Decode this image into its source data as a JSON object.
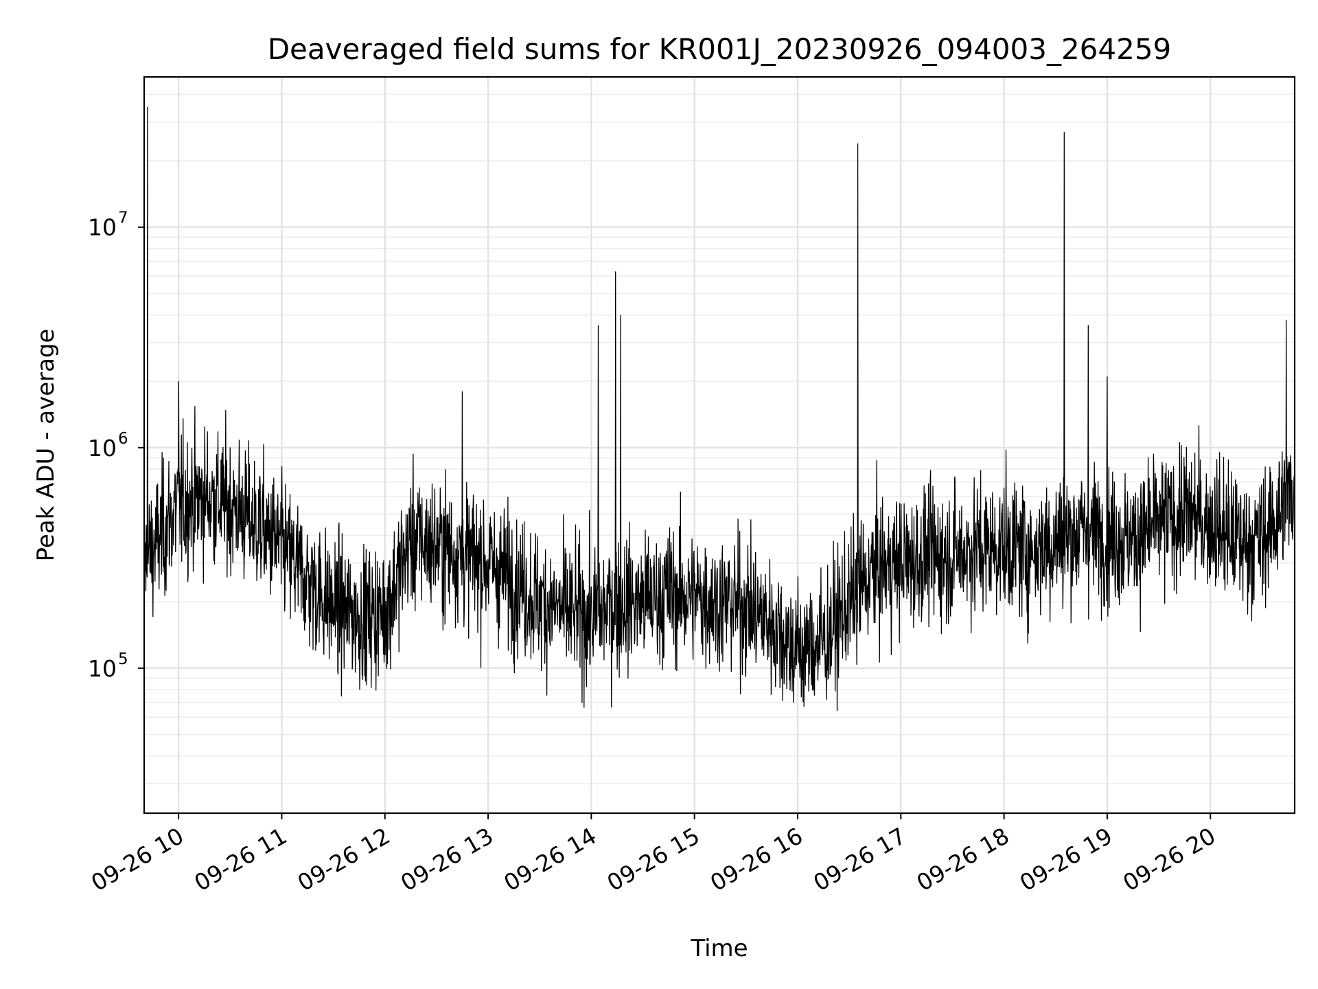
{
  "chart_data": {
    "type": "line",
    "title": "Deaveraged field sums for KR001J_20230926_094003_264259",
    "xlabel": "Time",
    "ylabel": "Peak ADU - average",
    "yscale": "log",
    "xlim": [
      "2023-09-26 09:40",
      "2023-09-26 20:49"
    ],
    "ylim": [
      22000,
      48000000
    ],
    "grid": true,
    "line_color": "#000000",
    "x_ticks": [
      {
        "value": "2023-09-26 10:00",
        "label": "09-26 10"
      },
      {
        "value": "2023-09-26 11:00",
        "label": "09-26 11"
      },
      {
        "value": "2023-09-26 12:00",
        "label": "09-26 12"
      },
      {
        "value": "2023-09-26 13:00",
        "label": "09-26 13"
      },
      {
        "value": "2023-09-26 14:00",
        "label": "09-26 14"
      },
      {
        "value": "2023-09-26 15:00",
        "label": "09-26 15"
      },
      {
        "value": "2023-09-26 16:00",
        "label": "09-26 16"
      },
      {
        "value": "2023-09-26 17:00",
        "label": "09-26 17"
      },
      {
        "value": "2023-09-26 18:00",
        "label": "09-26 18"
      },
      {
        "value": "2023-09-26 19:00",
        "label": "09-26 19"
      },
      {
        "value": "2023-09-26 20:00",
        "label": "09-26 20"
      }
    ],
    "y_ticks": [
      {
        "value": 100000,
        "base": "10",
        "exp": "5"
      },
      {
        "value": 1000000,
        "base": "10",
        "exp": "6"
      },
      {
        "value": 10000000,
        "base": "10",
        "exp": "7"
      }
    ],
    "baseline": {
      "x": [
        "2023-09-26 09:40",
        "2023-09-26 09:50",
        "2023-09-26 10:00",
        "2023-09-26 10:15",
        "2023-09-26 10:30",
        "2023-09-26 10:45",
        "2023-09-26 11:00",
        "2023-09-26 11:15",
        "2023-09-26 11:30",
        "2023-09-26 11:45",
        "2023-09-26 12:00",
        "2023-09-26 12:15",
        "2023-09-26 12:30",
        "2023-09-26 12:45",
        "2023-09-26 13:00",
        "2023-09-26 13:15",
        "2023-09-26 13:30",
        "2023-09-26 13:45",
        "2023-09-26 14:00",
        "2023-09-26 14:15",
        "2023-09-26 14:30",
        "2023-09-26 14:45",
        "2023-09-26 15:00",
        "2023-09-26 15:15",
        "2023-09-26 15:30",
        "2023-09-26 15:45",
        "2023-09-26 16:00",
        "2023-09-26 16:15",
        "2023-09-26 16:30",
        "2023-09-26 16:45",
        "2023-09-26 17:00",
        "2023-09-26 17:15",
        "2023-09-26 17:30",
        "2023-09-26 17:45",
        "2023-09-26 18:00",
        "2023-09-26 18:15",
        "2023-09-26 18:30",
        "2023-09-26 18:45",
        "2023-09-26 19:00",
        "2023-09-26 19:15",
        "2023-09-26 19:30",
        "2023-09-26 19:45",
        "2023-09-26 20:00",
        "2023-09-26 20:15",
        "2023-09-26 20:30",
        "2023-09-26 20:49"
      ],
      "y": [
        300000,
        400000,
        550000,
        600000,
        550000,
        450000,
        350000,
        250000,
        190000,
        170000,
        180000,
        380000,
        360000,
        330000,
        300000,
        250000,
        200000,
        180000,
        170000,
        200000,
        200000,
        220000,
        210000,
        200000,
        190000,
        160000,
        120000,
        130000,
        200000,
        280000,
        300000,
        320000,
        330000,
        350000,
        360000,
        340000,
        380000,
        420000,
        400000,
        380000,
        450000,
        500000,
        460000,
        380000,
        380000,
        650000
      ]
    },
    "spikes": [
      {
        "x": "2023-09-26 09:42",
        "y": 35000000
      },
      {
        "x": "2023-09-26 10:00",
        "y": 2000000
      },
      {
        "x": "2023-09-26 12:45",
        "y": 1800000
      },
      {
        "x": "2023-09-26 14:04",
        "y": 3600000
      },
      {
        "x": "2023-09-26 14:14",
        "y": 6300000
      },
      {
        "x": "2023-09-26 14:17",
        "y": 4000000
      },
      {
        "x": "2023-09-26 16:35",
        "y": 24000000
      },
      {
        "x": "2023-09-26 18:35",
        "y": 27000000
      },
      {
        "x": "2023-09-26 18:49",
        "y": 3600000
      },
      {
        "x": "2023-09-26 19:00",
        "y": 2100000
      },
      {
        "x": "2023-09-26 20:44",
        "y": 3800000
      }
    ]
  }
}
